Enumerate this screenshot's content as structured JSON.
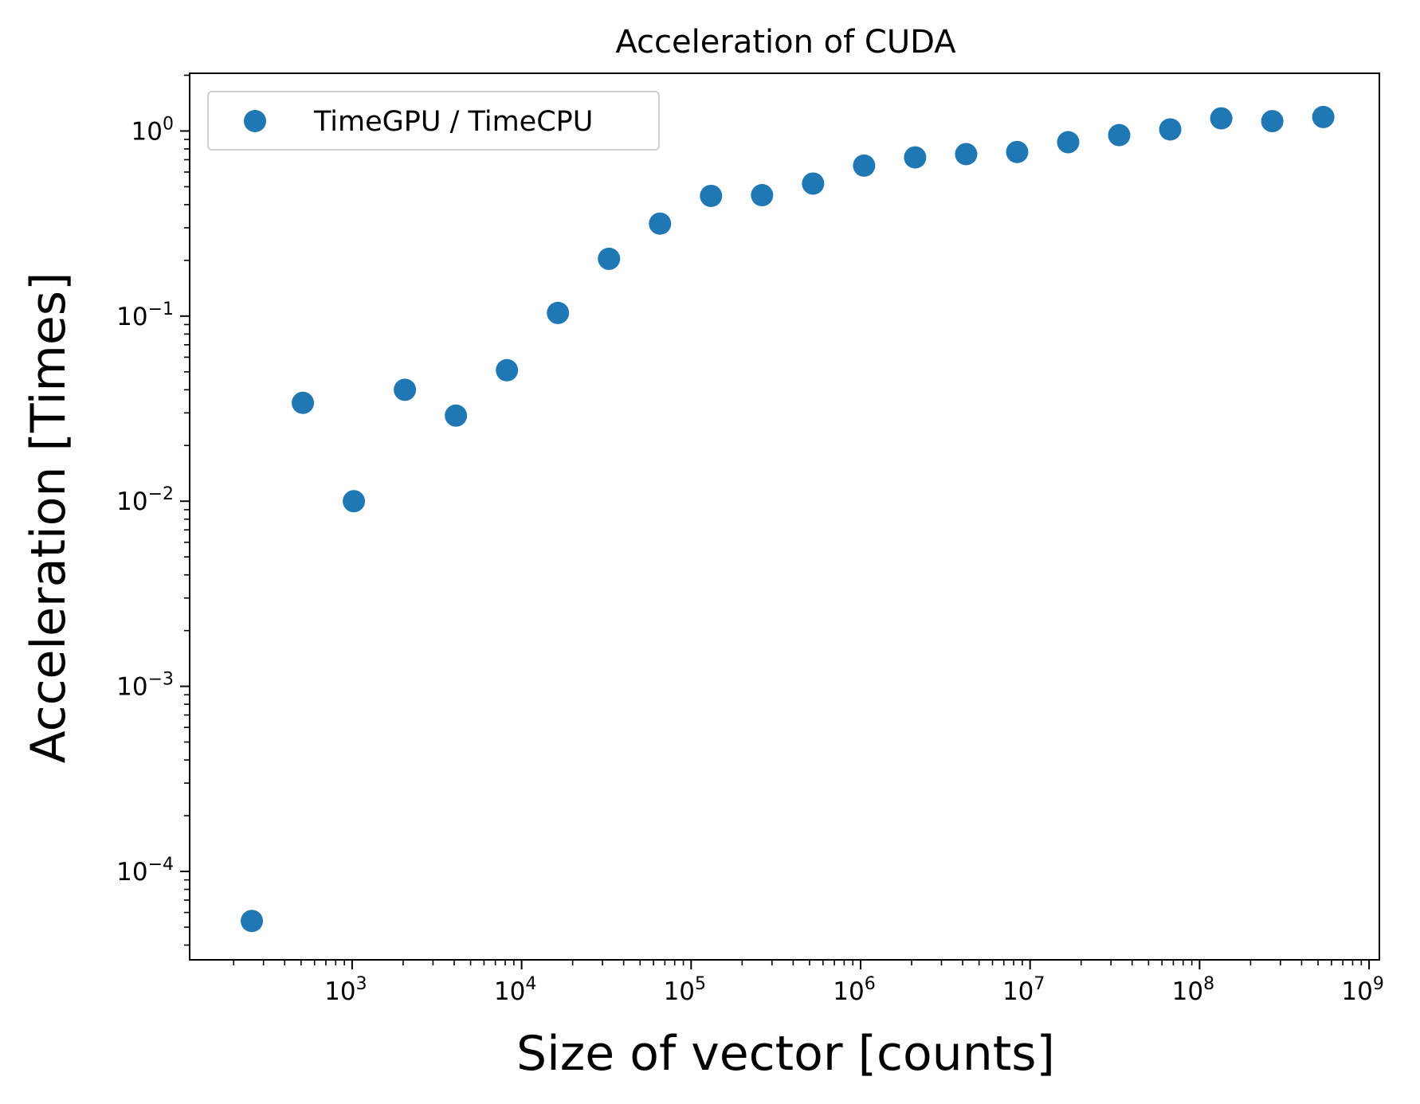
{
  "chart_data": {
    "type": "scatter",
    "title": "Acceleration of CUDA",
    "xlabel": "Size of vector [counts]",
    "ylabel": "Acceleration [Times]",
    "xscale": "log",
    "yscale": "log",
    "xlim": [
      110,
      1150000000
    ],
    "ylim": [
      3.33e-05,
      2.05
    ],
    "x_ticks": [
      {
        "base": "10",
        "exp": "3",
        "value": 1000
      },
      {
        "base": "10",
        "exp": "4",
        "value": 10000
      },
      {
        "base": "10",
        "exp": "5",
        "value": 100000
      },
      {
        "base": "10",
        "exp": "6",
        "value": 1000000
      },
      {
        "base": "10",
        "exp": "7",
        "value": 10000000
      },
      {
        "base": "10",
        "exp": "8",
        "value": 100000000
      },
      {
        "base": "10",
        "exp": "9",
        "value": 1000000000
      }
    ],
    "y_ticks": [
      {
        "base": "10",
        "exp": "0",
        "value": 1
      },
      {
        "base": "10",
        "exp": "−1",
        "value": 0.1
      },
      {
        "base": "10",
        "exp": "−2",
        "value": 0.01
      },
      {
        "base": "10",
        "exp": "−3",
        "value": 0.001
      },
      {
        "base": "10",
        "exp": "−4",
        "value": 0.0001
      }
    ],
    "grid": false,
    "legend_position": "top-left",
    "series": [
      {
        "name": "TimeGPU / TimeCPU",
        "color": "#1f77b4",
        "x": [
          256,
          512,
          1024,
          2048,
          4096,
          8192,
          16384,
          32768,
          65536,
          131072,
          262144,
          524288,
          1048576,
          2097152,
          4194304,
          8388608,
          16777216,
          33554432,
          67108864,
          134217728,
          268435456,
          536870912
        ],
        "y": [
          5.4e-05,
          0.034,
          0.01,
          0.04,
          0.029,
          0.051,
          0.104,
          0.204,
          0.316,
          0.446,
          0.45,
          0.52,
          0.65,
          0.72,
          0.75,
          0.77,
          0.87,
          0.95,
          1.02,
          1.17,
          1.13,
          1.19
        ]
      }
    ]
  }
}
